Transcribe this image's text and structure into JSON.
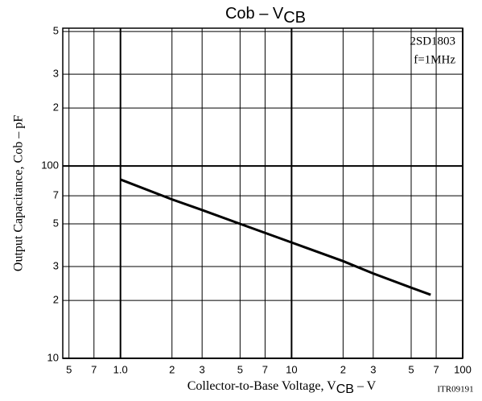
{
  "chart_data": {
    "type": "line",
    "title": {
      "text": "Cob  –  V",
      "sub": "CB"
    },
    "x_label": {
      "text": "Collector-to-Base Voltage, V",
      "sub": "CB",
      "after": "  –  V"
    },
    "y_label": "Output Capacitance, Cob  –  pF",
    "annotations": [
      "2SD1803",
      "f=1MHz"
    ],
    "figure_id": "ITR09191",
    "x_scale": "log",
    "y_scale": "log",
    "grid": true,
    "xlim": [
      0.46,
      100
    ],
    "ylim": [
      10,
      520
    ],
    "xticks": [
      {
        "value": 0.5,
        "label": "5"
      },
      {
        "value": 0.7,
        "label": "7"
      },
      {
        "value": 1,
        "label": "1.0"
      },
      2,
      3,
      5,
      7,
      10,
      {
        "value": 20,
        "label": "2"
      },
      {
        "value": 30,
        "label": "3"
      },
      {
        "value": 50,
        "label": "5"
      },
      {
        "value": 70,
        "label": "7"
      },
      100
    ],
    "yticks": [
      10,
      {
        "value": 20,
        "label": "2"
      },
      {
        "value": 30,
        "label": "3"
      },
      {
        "value": 50,
        "label": "5"
      },
      {
        "value": 70,
        "label": "7"
      },
      100,
      {
        "value": 200,
        "label": "2"
      },
      {
        "value": 300,
        "label": "3"
      },
      {
        "value": 500,
        "label": "5"
      }
    ],
    "series": [
      {
        "name": "Cob",
        "color": "#000000",
        "x": [
          1,
          2,
          3,
          5,
          10,
          20,
          30,
          50,
          65
        ],
        "values": [
          85,
          67,
          59,
          50,
          40,
          32,
          27.6,
          23.3,
          21.4
        ]
      }
    ]
  }
}
